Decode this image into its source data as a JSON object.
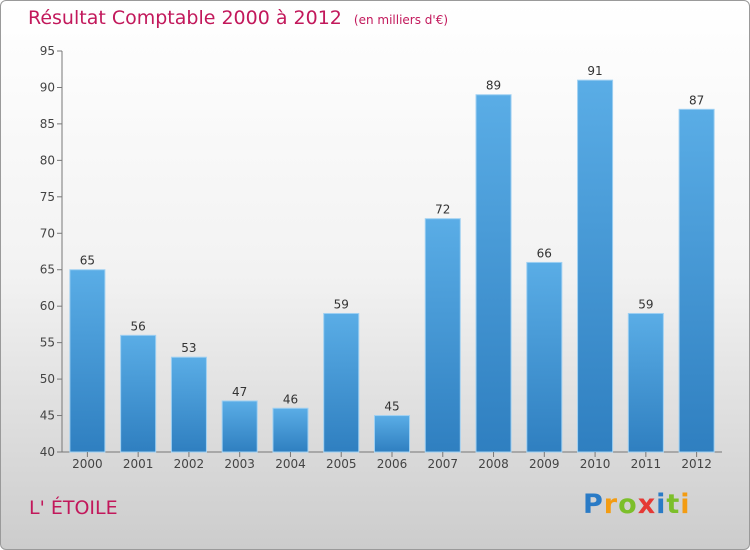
{
  "chart_data": {
    "type": "bar",
    "title": "Résultat Comptable 2000 à 2012",
    "subtitle": "(en milliers d'€)",
    "categories": [
      "2000",
      "2001",
      "2002",
      "2003",
      "2004",
      "2005",
      "2006",
      "2007",
      "2008",
      "2009",
      "2010",
      "2011",
      "2012"
    ],
    "values": [
      65,
      56,
      53,
      47,
      46,
      59,
      45,
      72,
      89,
      66,
      91,
      59,
      87
    ],
    "ylim": [
      40,
      95
    ],
    "yticks": [
      40,
      45,
      50,
      55,
      60,
      65,
      70,
      75,
      80,
      85,
      90,
      95
    ],
    "grid": false,
    "bar_color_top": "#5aade6",
    "bar_color_bottom": "#2f7fc0"
  },
  "location": {
    "name": "L' ÉTOILE"
  },
  "brand": {
    "letters": [
      "P",
      "r",
      "o",
      "x",
      "i",
      "t",
      "i"
    ],
    "colors": [
      "#2a7bc6",
      "#f39c12",
      "#7cbf2a",
      "#e53935",
      "#2a7bc6",
      "#7cbf2a",
      "#f39c12"
    ]
  }
}
